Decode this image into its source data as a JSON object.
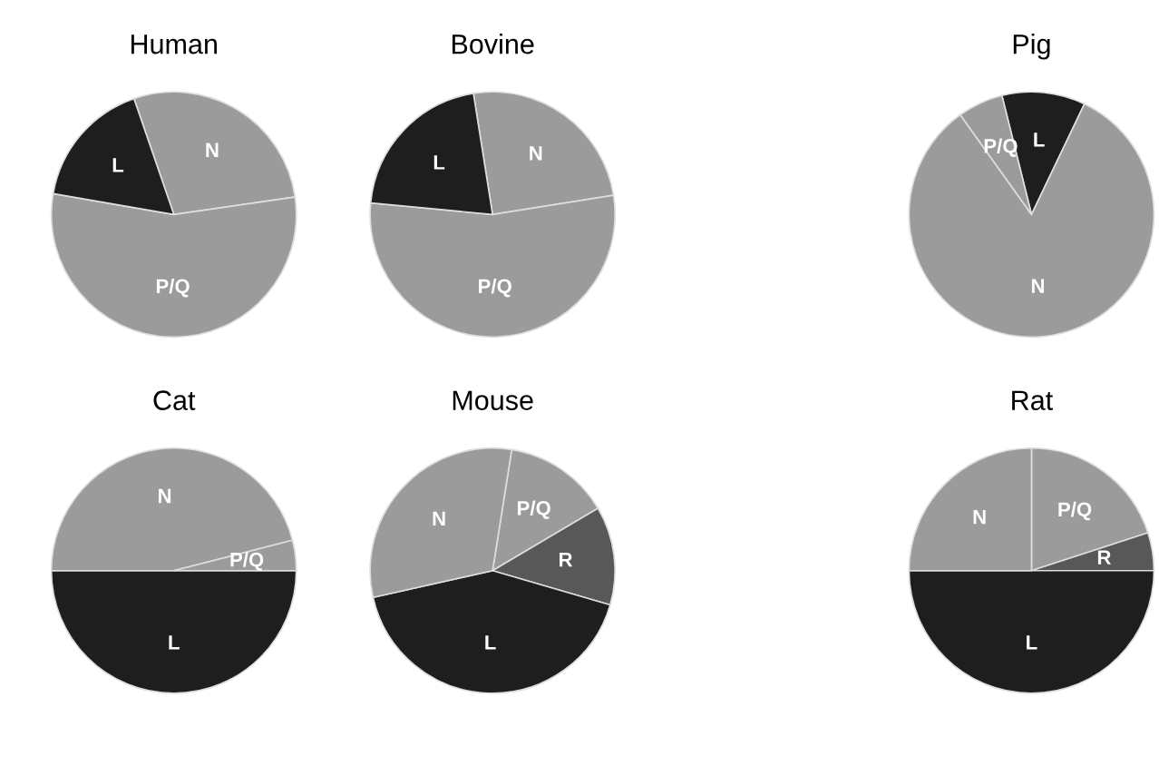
{
  "chart_data": [
    {
      "type": "pie",
      "title": "Human",
      "categories": [
        "N",
        "P/Q",
        "L"
      ],
      "values": [
        28,
        55,
        17
      ],
      "colors": [
        "#9b9b9b",
        "#9b9b9b",
        "#1e1e1e"
      ]
    },
    {
      "type": "pie",
      "title": "Bovine",
      "categories": [
        "N",
        "P/Q",
        "L"
      ],
      "values": [
        25,
        54,
        21
      ],
      "colors": [
        "#9b9b9b",
        "#9b9b9b",
        "#1e1e1e"
      ]
    },
    {
      "type": "pie",
      "title": "Pig",
      "categories": [
        "L",
        "N",
        "P/Q"
      ],
      "values": [
        11,
        83,
        6
      ],
      "colors": [
        "#1e1e1e",
        "#9b9b9b",
        "#9b9b9b"
      ]
    },
    {
      "type": "pie",
      "title": "Cat",
      "categories": [
        "L",
        "N",
        "P/Q"
      ],
      "values": [
        50,
        46,
        4
      ],
      "colors": [
        "#1e1e1e",
        "#9b9b9b",
        "#9b9b9b"
      ]
    },
    {
      "type": "pie",
      "title": "Mouse",
      "categories": [
        "P/Q",
        "R",
        "L",
        "N"
      ],
      "values": [
        14,
        13,
        42,
        31
      ],
      "colors": [
        "#9b9b9b",
        "#585858",
        "#1e1e1e",
        "#9b9b9b"
      ]
    },
    {
      "type": "pie",
      "title": "Rat",
      "categories": [
        "P/Q",
        "R",
        "L",
        "N"
      ],
      "values": [
        20,
        5,
        50,
        25
      ],
      "colors": [
        "#9b9b9b",
        "#585858",
        "#1e1e1e",
        "#9b9b9b"
      ]
    }
  ]
}
